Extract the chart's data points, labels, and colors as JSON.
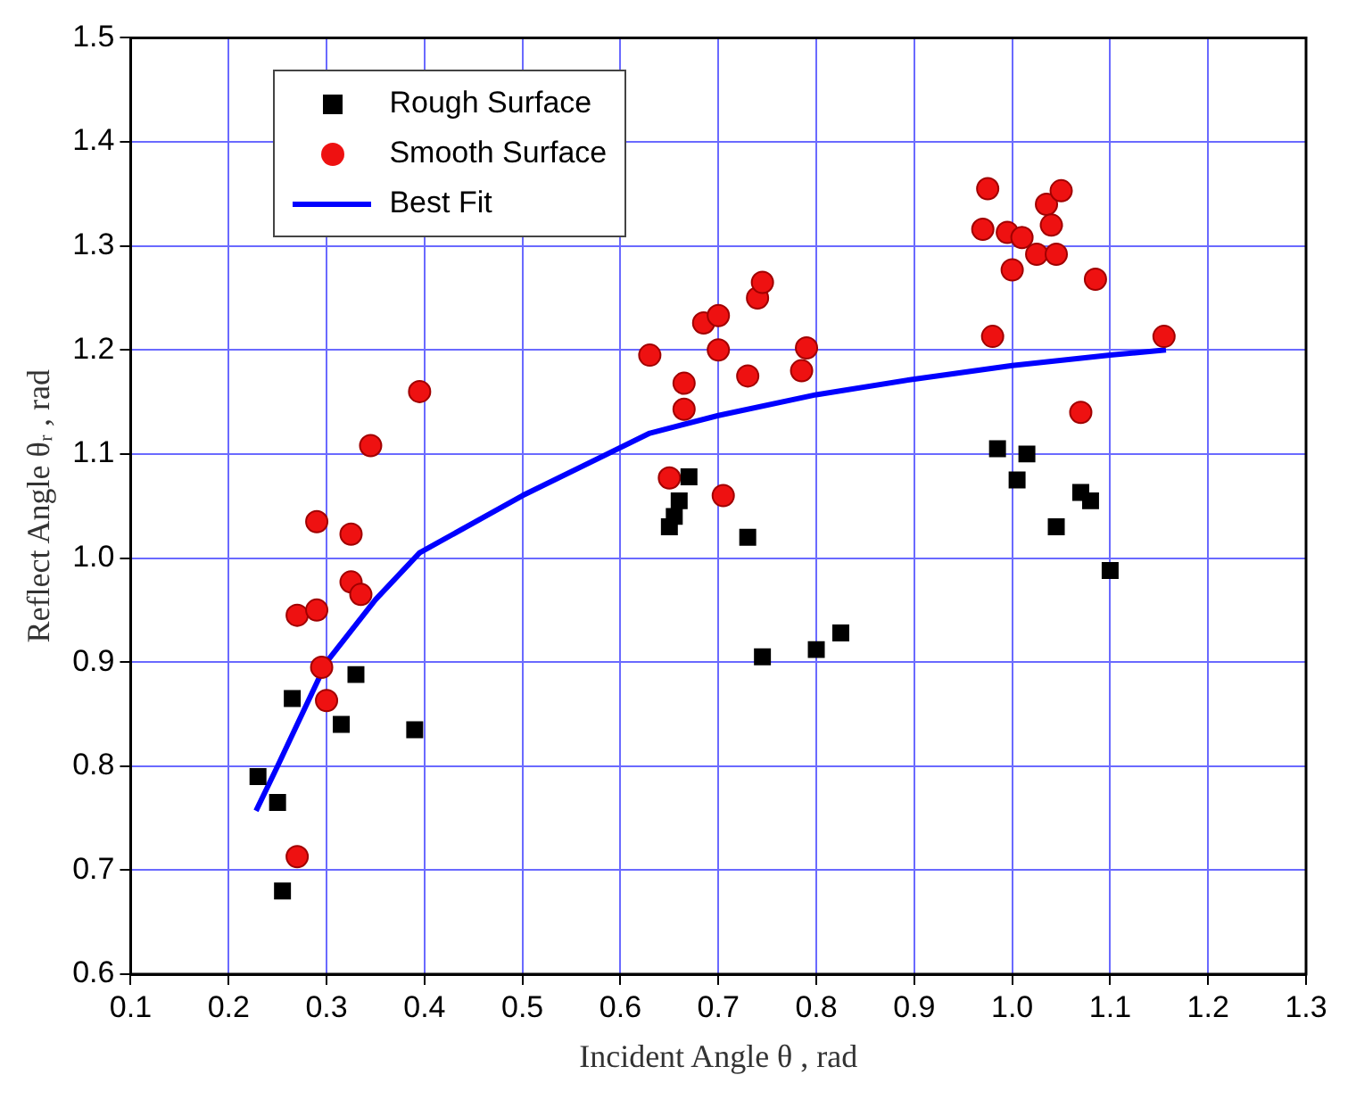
{
  "chart_data": {
    "type": "scatter",
    "xlabel": "Incident Angle θ , rad",
    "ylabel": "Reflect Angle θᵣ , rad",
    "xlim": [
      0.1,
      1.3
    ],
    "xticks": [
      0.1,
      0.2,
      0.3,
      0.4,
      0.5,
      0.6,
      0.7,
      0.8,
      0.9,
      {
        "value": 1,
        "label": "1.0"
      },
      1.1,
      1.2,
      1.3
    ],
    "ylim": [
      0.6,
      1.5
    ],
    "yticks": [
      0.6,
      0.7,
      0.8,
      0.9,
      {
        "value": 1,
        "label": "1.0"
      },
      1.1,
      1.2,
      1.3,
      1.4,
      1.5
    ],
    "grid": true,
    "legend": "top left",
    "series": [
      {
        "name": "Rough Surface",
        "color": "#000000",
        "marker": "square",
        "x": [
          0.23,
          0.25,
          0.255,
          0.265,
          0.315,
          0.33,
          0.39,
          0.65,
          0.655,
          0.66,
          0.67,
          0.73,
          0.745,
          0.8,
          0.825,
          0.985,
          1.005,
          1.015,
          1.045,
          1.07,
          1.08,
          1.1
        ],
        "values": [
          0.79,
          0.765,
          0.68,
          0.865,
          0.84,
          0.888,
          0.835,
          1.03,
          1.04,
          1.055,
          1.078,
          1.02,
          0.905,
          0.912,
          0.928,
          1.105,
          1.075,
          1.1,
          1.03,
          1.063,
          1.055,
          0.988
        ]
      },
      {
        "name": "Smooth Surface",
        "color": "#ee1111",
        "marker": "circle",
        "x": [
          0.27,
          0.27,
          0.29,
          0.29,
          0.295,
          0.3,
          0.325,
          0.325,
          0.335,
          0.345,
          0.395,
          0.63,
          0.65,
          0.665,
          0.665,
          0.685,
          0.7,
          0.7,
          0.705,
          0.73,
          0.74,
          0.745,
          0.785,
          0.79,
          0.97,
          0.975,
          0.98,
          0.995,
          1.0,
          1.01,
          1.025,
          1.035,
          1.04,
          1.045,
          1.05,
          1.07,
          1.085,
          1.155
        ],
        "values": [
          0.713,
          0.945,
          0.95,
          1.035,
          0.895,
          0.863,
          1.023,
          0.977,
          0.965,
          1.108,
          1.16,
          1.195,
          1.077,
          1.168,
          1.143,
          1.226,
          1.233,
          1.2,
          1.06,
          1.175,
          1.25,
          1.265,
          1.18,
          1.202,
          1.316,
          1.355,
          1.213,
          1.313,
          1.277,
          1.308,
          1.292,
          1.34,
          1.32,
          1.292,
          1.353,
          1.14,
          1.268,
          1.213
        ]
      },
      {
        "name": "Best Fit",
        "type": "line",
        "color": "#0000ff",
        "marker": "none",
        "line_style": "solid",
        "x": [
          0.228,
          0.25,
          0.3,
          0.35,
          0.395,
          0.5,
          0.63,
          0.7,
          0.8,
          0.9,
          1.0,
          1.1,
          1.157
        ],
        "values": [
          0.757,
          0.8,
          0.9,
          0.96,
          1.005,
          1.06,
          1.12,
          1.137,
          1.157,
          1.172,
          1.185,
          1.195,
          1.2
        ]
      }
    ]
  }
}
